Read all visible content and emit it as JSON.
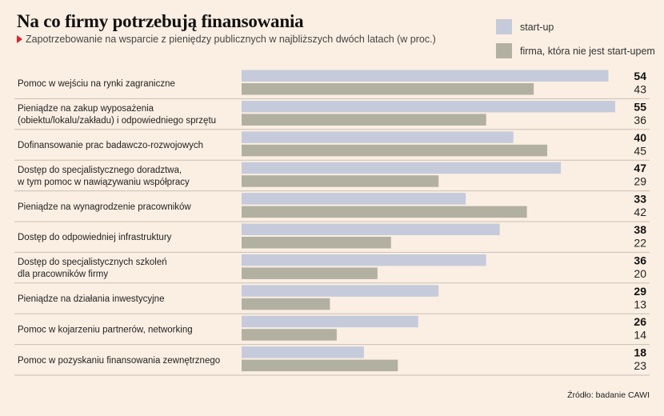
{
  "chart_data": {
    "type": "bar",
    "orientation": "horizontal",
    "title": "Na co firmy potrzebują finansowania",
    "subtitle": "Zapotrzebowanie na wsparcie z pieniędzy publicznych w najbliższych dwóch latach (w proc.)",
    "categories": [
      [
        "Pomoc w wejściu na rynki zagraniczne"
      ],
      [
        "Pieniądze na zakup wyposażenia",
        "(obiektu/lokalu/zakładu) i odpowiedniego sprzętu"
      ],
      [
        "Dofinansowanie prac badawczo-rozwojowych"
      ],
      [
        "Dostęp do specjalistycznego doradztwa,",
        "w tym pomoc w nawiązywaniu współpracy"
      ],
      [
        "Pieniądze na wynagrodzenie pracowników"
      ],
      [
        "Dostęp do odpowiedniej infrastruktury"
      ],
      [
        "Dostęp do specjalistycznych szkoleń",
        "dla pracowników firmy"
      ],
      [
        "Pieniądze na działania inwestycyjne"
      ],
      [
        "Pomoc w kojarzeniu partnerów, networking"
      ],
      [
        "Pomoc w pozyskaniu finansowania zewnętrznego"
      ]
    ],
    "series": [
      {
        "name": "start-up",
        "color": "#c5cbdb",
        "values": [
          54,
          55,
          40,
          47,
          33,
          38,
          36,
          29,
          26,
          18
        ]
      },
      {
        "name": "firma, która nie jest start-upem",
        "color": "#b2b0a0",
        "values": [
          43,
          36,
          45,
          29,
          42,
          22,
          20,
          13,
          14,
          23
        ]
      }
    ],
    "xlim": [
      0,
      55
    ],
    "legend": "top-right",
    "source": "Źródło: badanie CAWI"
  }
}
